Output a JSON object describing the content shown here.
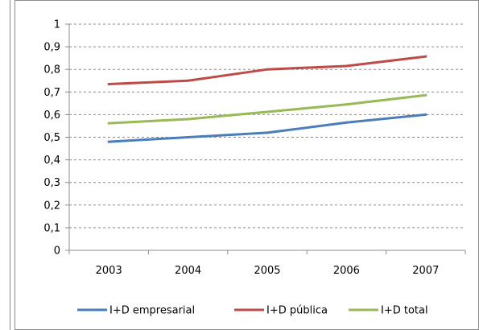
{
  "chart_data": {
    "type": "line",
    "title": "",
    "xlabel": "",
    "ylabel": "",
    "categories": [
      "2003",
      "2004",
      "2005",
      "2006",
      "2007"
    ],
    "ylim": [
      0,
      1
    ],
    "yticks": [
      "0",
      "0,1",
      "0,2",
      "0,3",
      "0,4",
      "0,5",
      "0,6",
      "0,7",
      "0,8",
      "0,9",
      "1"
    ],
    "grid": true,
    "legend_position": "bottom",
    "series": [
      {
        "name": "I+D empresarial",
        "color": "#4a7ebb",
        "values": [
          0.48,
          0.5,
          0.52,
          0.565,
          0.6
        ]
      },
      {
        "name": "I+D pública",
        "color": "#be4b48",
        "values": [
          0.735,
          0.75,
          0.8,
          0.815,
          0.857
        ]
      },
      {
        "name": "I+D total",
        "color": "#98b954",
        "values": [
          0.562,
          0.58,
          0.612,
          0.645,
          0.686
        ]
      }
    ]
  }
}
